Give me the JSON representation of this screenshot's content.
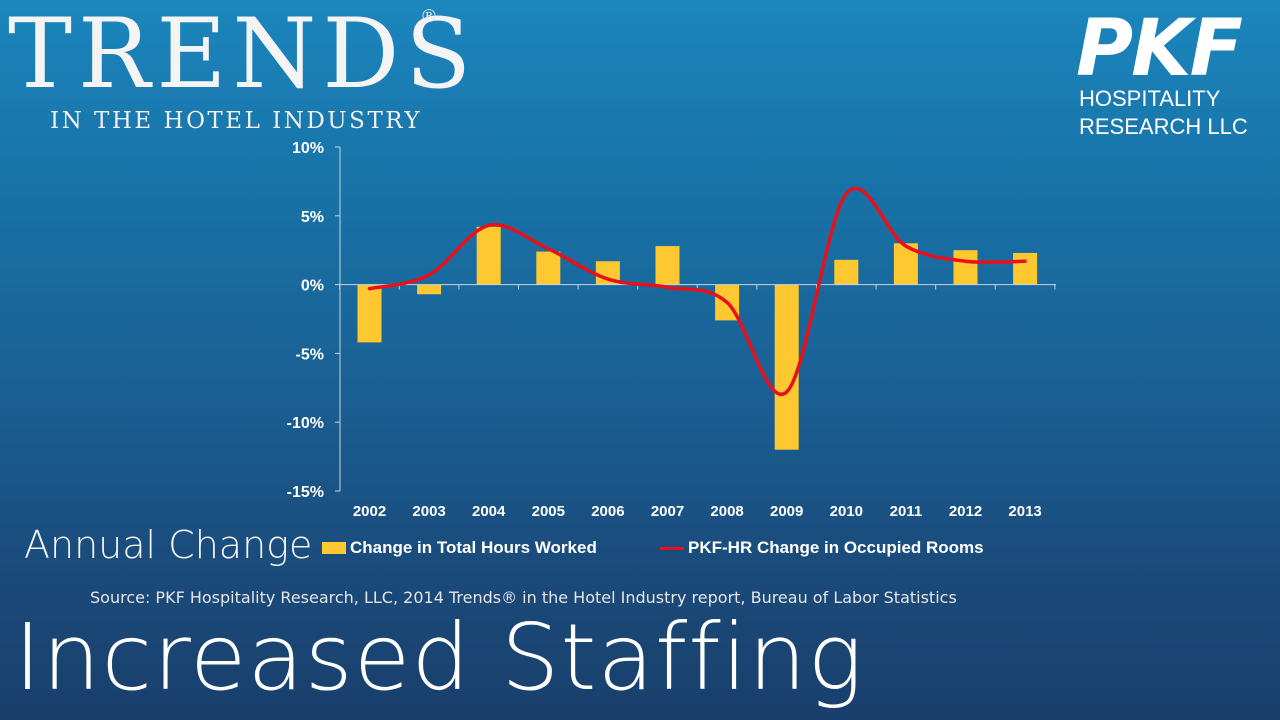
{
  "brand": {
    "title": "TRENDS",
    "registered": "®",
    "subtitle": "IN THE HOTEL INDUSTRY"
  },
  "logo": {
    "mark": "PKF",
    "line1": "HOSPITALITY",
    "line2": "RESEARCH LLC"
  },
  "colors": {
    "bar": "#fdc830",
    "line": "#e8101a",
    "axis": "#c9d3df",
    "text": "#ffffff"
  },
  "chart_data": {
    "type": "bar",
    "categories": [
      "2002",
      "2003",
      "2004",
      "2005",
      "2006",
      "2007",
      "2008",
      "2009",
      "2010",
      "2011",
      "2012",
      "2013"
    ],
    "series": [
      {
        "name": "Change in Total Hours Worked",
        "type": "bar",
        "values": [
          -4.2,
          -0.7,
          4.2,
          2.4,
          1.7,
          2.8,
          -2.6,
          -12.0,
          1.8,
          3.0,
          2.5,
          2.3
        ]
      },
      {
        "name": "PKF-HR Change in Occupied Rooms",
        "type": "line",
        "values": [
          -0.3,
          0.7,
          4.3,
          2.6,
          0.4,
          -0.2,
          -1.3,
          -7.8,
          6.6,
          2.8,
          1.7,
          1.7
        ]
      }
    ],
    "yticks": [
      "10%",
      "5%",
      "0%",
      "-5%",
      "-10%",
      "-15%"
    ],
    "ytick_values": [
      10,
      5,
      0,
      -5,
      -10,
      -15
    ],
    "ylim": [
      -15,
      10
    ],
    "legend": "bottom",
    "grid": false
  },
  "footer": {
    "annual": "Annual Change",
    "source": "Source: PKF Hospitality Research, LLC, 2014 Trends® in the Hotel Industry report, Bureau of Labor Statistics",
    "headline": "Increased Staffing"
  }
}
